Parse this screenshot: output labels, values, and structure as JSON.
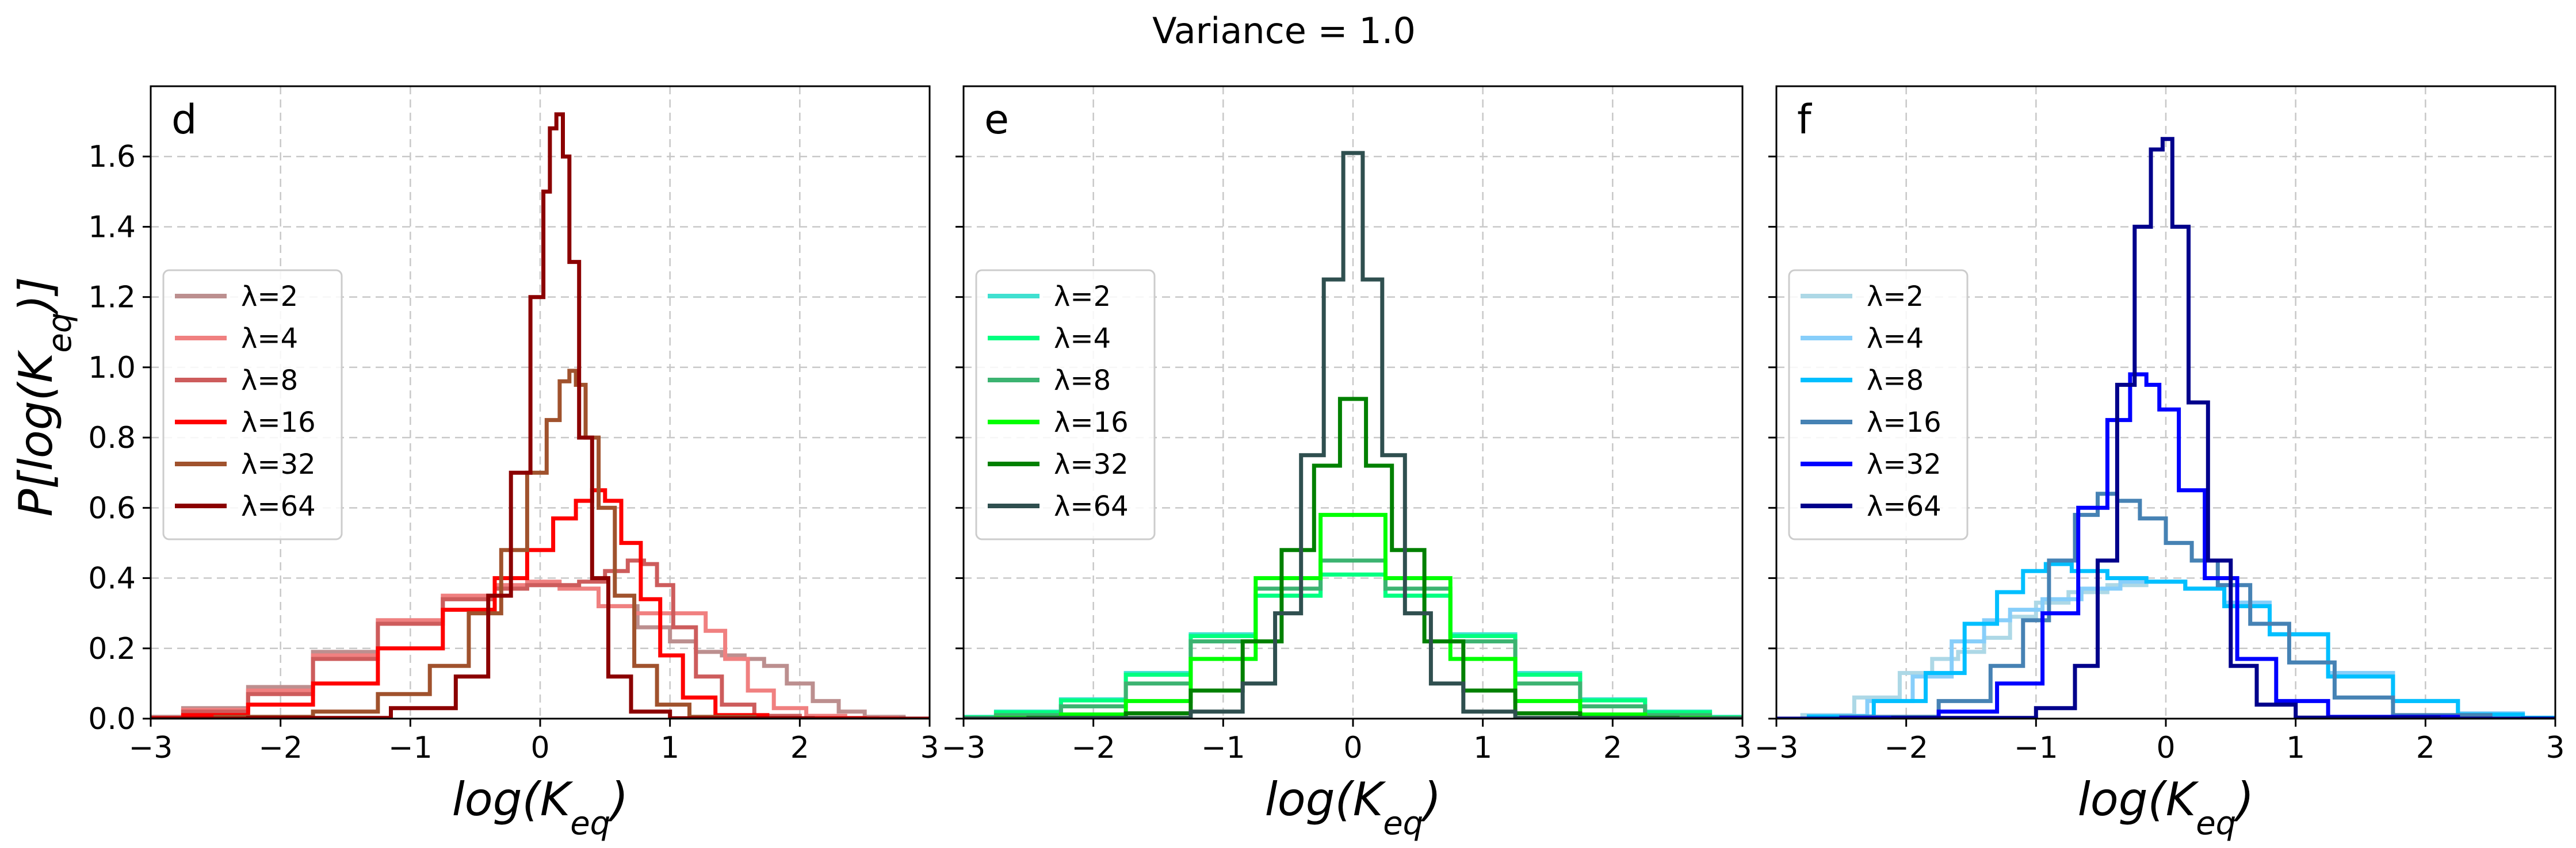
{
  "figure": {
    "suptitle": "Variance = 1.0",
    "ylabel": "P[log(K_eq)]",
    "xlabel": "log(K_eq)"
  },
  "chart_data": [
    {
      "type": "line",
      "panel_label": "d",
      "xlim": [
        -3,
        3
      ],
      "ylim": [
        0,
        1.8
      ],
      "xticks": [
        -3,
        -2,
        -1,
        0,
        1,
        2,
        3
      ],
      "yticks": [
        0.0,
        0.2,
        0.4,
        0.6,
        0.8,
        1.0,
        1.2,
        1.4,
        1.6
      ],
      "grid": true,
      "legend": "center-left",
      "series": [
        {
          "name": "λ=2",
          "color": "#bc8f8f",
          "x": [
            -3,
            -2.5,
            -2,
            -1.5,
            -1,
            -0.5,
            -0.2,
            0,
            0.3,
            0.6,
            0.9,
            1.1,
            1.3,
            1.5,
            1.65,
            1.8,
            2,
            2.2,
            2.4,
            2.6,
            3
          ],
          "y": [
            0.005,
            0.03,
            0.09,
            0.19,
            0.28,
            0.34,
            0.37,
            0.38,
            0.37,
            0.32,
            0.26,
            0.22,
            0.19,
            0.18,
            0.17,
            0.15,
            0.1,
            0.05,
            0.02,
            0.005,
            0
          ]
        },
        {
          "name": "λ=4",
          "color": "#f08080",
          "x": [
            -3,
            -2.5,
            -2,
            -1.5,
            -1,
            -0.5,
            -0.2,
            0,
            0.3,
            0.6,
            0.85,
            1.05,
            1.2,
            1.35,
            1.5,
            1.7,
            1.9,
            2.2,
            2.5,
            3
          ],
          "y": [
            0.003,
            0.025,
            0.08,
            0.18,
            0.28,
            0.35,
            0.38,
            0.39,
            0.37,
            0.32,
            0.3,
            0.3,
            0.3,
            0.25,
            0.17,
            0.08,
            0.03,
            0.008,
            0.002,
            0
          ]
        },
        {
          "name": "λ=8",
          "color": "#cd5c5c",
          "x": [
            -3,
            -2.5,
            -2,
            -1.5,
            -1,
            -0.5,
            -0.2,
            0,
            0.2,
            0.4,
            0.6,
            0.75,
            0.85,
            0.95,
            1.1,
            1.3,
            1.5,
            1.8,
            2.2,
            3
          ],
          "y": [
            0.003,
            0.02,
            0.07,
            0.17,
            0.27,
            0.34,
            0.37,
            0.38,
            0.38,
            0.39,
            0.42,
            0.45,
            0.44,
            0.38,
            0.26,
            0.12,
            0.04,
            0.008,
            0.001,
            0
          ]
        },
        {
          "name": "λ=16",
          "color": "#ff0000",
          "x": [
            -3,
            -2.5,
            -2,
            -1.5,
            -1,
            -0.5,
            -0.2,
            0,
            0.2,
            0.35,
            0.45,
            0.55,
            0.7,
            0.85,
            1,
            1.2,
            1.5,
            2,
            3
          ],
          "y": [
            0.001,
            0.01,
            0.04,
            0.1,
            0.2,
            0.31,
            0.4,
            0.48,
            0.57,
            0.62,
            0.65,
            0.62,
            0.5,
            0.34,
            0.18,
            0.06,
            0.01,
            0.001,
            0
          ]
        },
        {
          "name": "λ=32",
          "color": "#a0522d",
          "x": [
            -3,
            -2,
            -1.5,
            -1,
            -0.7,
            -0.4,
            -0.2,
            0,
            0.1,
            0.2,
            0.25,
            0.3,
            0.4,
            0.5,
            0.65,
            0.8,
            1,
            1.3,
            2,
            3
          ],
          "y": [
            0,
            0.005,
            0.02,
            0.07,
            0.15,
            0.3,
            0.48,
            0.7,
            0.85,
            0.96,
            0.99,
            0.95,
            0.8,
            0.6,
            0.35,
            0.15,
            0.04,
            0.005,
            0,
            0
          ]
        },
        {
          "name": "λ=64",
          "color": "#8b0000",
          "x": [
            -3,
            -1.5,
            -0.8,
            -0.5,
            -0.3,
            -0.15,
            0,
            0.05,
            0.1,
            0.15,
            0.2,
            0.25,
            0.35,
            0.45,
            0.6,
            0.8,
            1.2,
            3
          ],
          "y": [
            0,
            0.002,
            0.03,
            0.12,
            0.35,
            0.7,
            1.2,
            1.5,
            1.68,
            1.72,
            1.6,
            1.3,
            0.8,
            0.4,
            0.12,
            0.02,
            0.001,
            0
          ]
        }
      ]
    },
    {
      "type": "line",
      "panel_label": "e",
      "xlim": [
        -3,
        3
      ],
      "ylim": [
        0,
        1.8
      ],
      "xticks": [
        -3,
        -2,
        -1,
        0,
        1,
        2,
        3
      ],
      "yticks": [
        0.0,
        0.2,
        0.4,
        0.6,
        0.8,
        1.0,
        1.2,
        1.4,
        1.6
      ],
      "grid": true,
      "legend": "center-left",
      "series": [
        {
          "name": "λ=2",
          "color": "#40e0d0",
          "x": [
            -3,
            -2.5,
            -2,
            -1.5,
            -1,
            -0.5,
            0,
            0.5,
            1,
            1.5,
            2,
            2.5,
            3
          ],
          "y": [
            0.005,
            0.02,
            0.055,
            0.13,
            0.24,
            0.35,
            0.41,
            0.35,
            0.24,
            0.13,
            0.055,
            0.02,
            0.005
          ]
        },
        {
          "name": "λ=4",
          "color": "#00ff7f",
          "x": [
            -3,
            -2.5,
            -2,
            -1.5,
            -1,
            -0.5,
            0,
            0.5,
            1,
            1.5,
            2,
            2.5,
            3
          ],
          "y": [
            0.004,
            0.018,
            0.052,
            0.125,
            0.235,
            0.35,
            0.41,
            0.35,
            0.235,
            0.125,
            0.052,
            0.018,
            0.004
          ]
        },
        {
          "name": "λ=8",
          "color": "#3cb371",
          "x": [
            -3,
            -2.5,
            -2,
            -1.5,
            -1,
            -0.5,
            0,
            0.5,
            1,
            1.5,
            2,
            2.5,
            3
          ],
          "y": [
            0.002,
            0.01,
            0.035,
            0.1,
            0.22,
            0.37,
            0.45,
            0.37,
            0.22,
            0.1,
            0.035,
            0.01,
            0.002
          ]
        },
        {
          "name": "λ=16",
          "color": "#00ff00",
          "x": [
            -3,
            -2.5,
            -2,
            -1.5,
            -1,
            -0.5,
            0,
            0.5,
            1,
            1.5,
            2,
            2.5,
            3
          ],
          "y": [
            0,
            0.002,
            0.012,
            0.05,
            0.17,
            0.4,
            0.58,
            0.4,
            0.17,
            0.05,
            0.012,
            0.002,
            0
          ]
        },
        {
          "name": "λ=32",
          "color": "#008000",
          "x": [
            -3,
            -2,
            -1.5,
            -1,
            -0.7,
            -0.4,
            -0.2,
            0,
            0.2,
            0.4,
            0.7,
            1,
            1.5,
            2,
            3
          ],
          "y": [
            0,
            0.002,
            0.015,
            0.08,
            0.22,
            0.48,
            0.72,
            0.91,
            0.72,
            0.48,
            0.22,
            0.08,
            0.015,
            0.002,
            0
          ]
        },
        {
          "name": "λ=64",
          "color": "#2f4f4f",
          "x": [
            -3,
            -1.5,
            -1,
            -0.7,
            -0.5,
            -0.3,
            -0.15,
            0,
            0.15,
            0.3,
            0.5,
            0.7,
            1,
            1.5,
            3
          ],
          "y": [
            0,
            0.002,
            0.02,
            0.1,
            0.3,
            0.75,
            1.25,
            1.61,
            1.25,
            0.75,
            0.3,
            0.1,
            0.02,
            0.002,
            0
          ]
        }
      ]
    },
    {
      "type": "line",
      "panel_label": "f",
      "xlim": [
        -3,
        3
      ],
      "ylim": [
        0,
        1.8
      ],
      "xticks": [
        -3,
        -2,
        -1,
        0,
        1,
        2,
        3
      ],
      "yticks": [
        0.0,
        0.2,
        0.4,
        0.6,
        0.8,
        1.0,
        1.2,
        1.4,
        1.6
      ],
      "grid": true,
      "legend": "center-left",
      "series": [
        {
          "name": "λ=2",
          "color": "#add8e6",
          "x": [
            -3,
            -2.6,
            -2.2,
            -1.9,
            -1.7,
            -1.5,
            -1.3,
            -1.1,
            -0.9,
            -0.6,
            -0.3,
            0,
            0.3,
            0.6,
            1,
            1.5,
            2,
            2.5,
            3
          ],
          "y": [
            0,
            0.01,
            0.06,
            0.13,
            0.17,
            0.19,
            0.23,
            0.29,
            0.33,
            0.36,
            0.38,
            0.39,
            0.37,
            0.33,
            0.24,
            0.13,
            0.05,
            0.015,
            0.003
          ]
        },
        {
          "name": "λ=4",
          "color": "#87cefa",
          "x": [
            -3,
            -2.5,
            -2.1,
            -1.8,
            -1.5,
            -1.3,
            -1.1,
            -0.8,
            -0.5,
            -0.2,
            0,
            0.3,
            0.6,
            1,
            1.5,
            2,
            2.5,
            3
          ],
          "y": [
            0,
            0.008,
            0.05,
            0.12,
            0.22,
            0.28,
            0.31,
            0.34,
            0.37,
            0.39,
            0.39,
            0.37,
            0.33,
            0.24,
            0.13,
            0.05,
            0.015,
            0.003
          ]
        },
        {
          "name": "λ=8",
          "color": "#00bfff",
          "x": [
            -3,
            -2.5,
            -2,
            -1.7,
            -1.4,
            -1.2,
            -1,
            -0.85,
            -0.6,
            -0.3,
            0,
            0.3,
            0.6,
            1,
            1.5,
            2,
            2.5,
            3
          ],
          "y": [
            0,
            0.006,
            0.05,
            0.13,
            0.27,
            0.36,
            0.42,
            0.44,
            0.42,
            0.4,
            0.39,
            0.37,
            0.32,
            0.24,
            0.12,
            0.05,
            0.012,
            0.002
          ]
        },
        {
          "name": "λ=16",
          "color": "#4682b4",
          "x": [
            -3,
            -2,
            -1.5,
            -1.2,
            -1,
            -0.8,
            -0.6,
            -0.45,
            -0.3,
            -0.1,
            0.1,
            0.3,
            0.5,
            0.8,
            1.1,
            1.5,
            2,
            3
          ],
          "y": [
            0,
            0.005,
            0.05,
            0.15,
            0.28,
            0.45,
            0.58,
            0.64,
            0.62,
            0.57,
            0.5,
            0.45,
            0.38,
            0.27,
            0.16,
            0.06,
            0.01,
            0
          ]
        },
        {
          "name": "λ=32",
          "color": "#0000ff",
          "x": [
            -3,
            -2,
            -1.5,
            -1.1,
            -0.8,
            -0.55,
            -0.35,
            -0.2,
            -0.1,
            0,
            0.2,
            0.4,
            0.7,
            1,
            1.5,
            3
          ],
          "y": [
            0,
            0.002,
            0.02,
            0.1,
            0.3,
            0.6,
            0.85,
            0.98,
            0.95,
            0.88,
            0.65,
            0.4,
            0.17,
            0.05,
            0.005,
            0
          ]
        },
        {
          "name": "λ=64",
          "color": "#00008b",
          "x": [
            -3,
            -1.2,
            -0.8,
            -0.6,
            -0.45,
            -0.3,
            -0.18,
            -0.05,
            0,
            0.1,
            0.25,
            0.4,
            0.6,
            0.8,
            1.2,
            3
          ],
          "y": [
            0,
            0.002,
            0.03,
            0.15,
            0.45,
            0.95,
            1.4,
            1.62,
            1.65,
            1.4,
            0.9,
            0.45,
            0.15,
            0.04,
            0.003,
            0
          ]
        }
      ]
    }
  ]
}
